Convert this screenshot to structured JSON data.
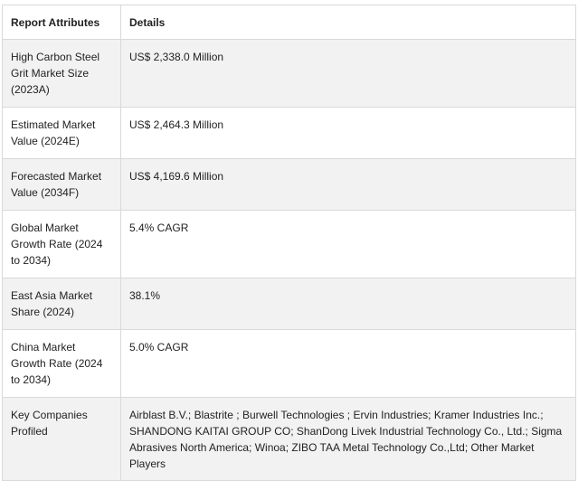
{
  "table": {
    "headers": [
      "Report Attributes",
      "Details"
    ],
    "rows": [
      {
        "attribute": "High Carbon Steel Grit Market Size (2023A)",
        "detail": "US$ 2,338.0 Million"
      },
      {
        "attribute": "Estimated Market Value (2024E)",
        "detail": "US$ 2,464.3 Million"
      },
      {
        "attribute": "Forecasted Market Value (2034F)",
        "detail": "US$ 4,169.6 Million"
      },
      {
        "attribute": "Global Market Growth Rate (2024 to 2034)",
        "detail": "5.4% CAGR"
      },
      {
        "attribute": "East Asia Market Share (2024)",
        "detail": "38.1%"
      },
      {
        "attribute": "China Market Growth Rate (2024 to 2034)",
        "detail": "5.0% CAGR"
      },
      {
        "attribute": "Key Companies Profiled",
        "detail": "Airblast B.V.; Blastrite ; Burwell Technologies ; Ervin Industries; Kramer Industries Inc.; SHANDONG KAITAI GROUP CO; ShanDong Livek Industrial Technology Co., Ltd.; Sigma Abrasives North America; Winoa; ZIBO TAA Metal Technology Co.,Ltd; Other Market Players"
      }
    ]
  }
}
